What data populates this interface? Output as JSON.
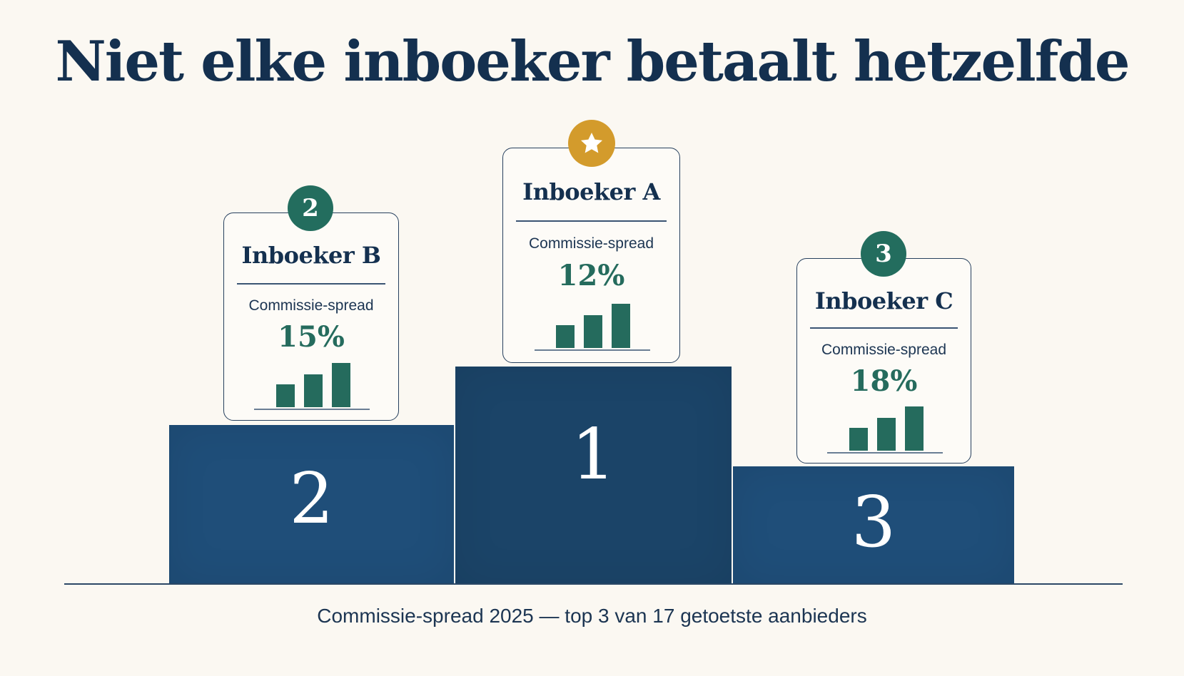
{
  "title": "Niet elke inboeker betaalt hetzelfde",
  "caption": "Commissie-spread 2025 — top 3 van 17 getoetste aanbieders",
  "colors": {
    "background": "#fbf8f2",
    "navy_text": "#14304f",
    "podium_blue": "#1f4e79",
    "podium_first": "#1b4468",
    "accent_green": "#236d5e",
    "gold": "#d39b2c"
  },
  "podium": {
    "first": {
      "rank_label": "1",
      "badge_icon": "star-icon",
      "name": "Inboeker A",
      "metric_label": "Commissie-spread",
      "value": "12%"
    },
    "second": {
      "rank_label": "2",
      "badge_label": "2",
      "name": "Inboeker B",
      "metric_label": "Commissie-spread",
      "value": "15%"
    },
    "third": {
      "rank_label": "3",
      "badge_label": "3",
      "name": "Inboeker C",
      "metric_label": "Commissie-spread",
      "value": "18%"
    }
  }
}
